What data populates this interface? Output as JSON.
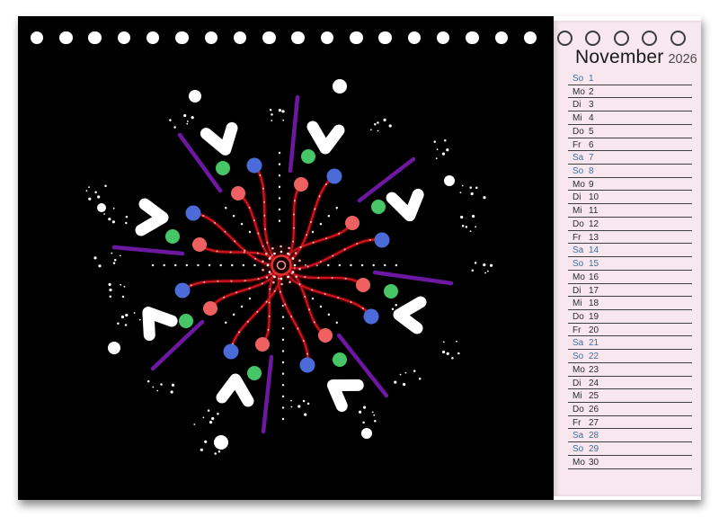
{
  "calendar": {
    "title": "November",
    "year": "2026",
    "days": [
      {
        "label": "So",
        "num": "1",
        "weekend": true
      },
      {
        "label": "Mo",
        "num": "2",
        "weekend": false
      },
      {
        "label": "Di",
        "num": "3",
        "weekend": false
      },
      {
        "label": "Mi",
        "num": "4",
        "weekend": false
      },
      {
        "label": "Do",
        "num": "5",
        "weekend": false
      },
      {
        "label": "Fr",
        "num": "6",
        "weekend": false
      },
      {
        "label": "Sa",
        "num": "7",
        "weekend": true
      },
      {
        "label": "So",
        "num": "8",
        "weekend": true
      },
      {
        "label": "Mo",
        "num": "9",
        "weekend": false
      },
      {
        "label": "Di",
        "num": "10",
        "weekend": false
      },
      {
        "label": "Mi",
        "num": "11",
        "weekend": false
      },
      {
        "label": "Do",
        "num": "12",
        "weekend": false
      },
      {
        "label": "Fr",
        "num": "13",
        "weekend": false
      },
      {
        "label": "Sa",
        "num": "14",
        "weekend": true
      },
      {
        "label": "So",
        "num": "15",
        "weekend": true
      },
      {
        "label": "Mo",
        "num": "16",
        "weekend": false
      },
      {
        "label": "Di",
        "num": "17",
        "weekend": false
      },
      {
        "label": "Mi",
        "num": "18",
        "weekend": false
      },
      {
        "label": "Do",
        "num": "19",
        "weekend": false
      },
      {
        "label": "Fr",
        "num": "20",
        "weekend": false
      },
      {
        "label": "Sa",
        "num": "21",
        "weekend": true
      },
      {
        "label": "So",
        "num": "22",
        "weekend": true
      },
      {
        "label": "Mo",
        "num": "23",
        "weekend": false
      },
      {
        "label": "Di",
        "num": "24",
        "weekend": false
      },
      {
        "label": "Mi",
        "num": "25",
        "weekend": false
      },
      {
        "label": "Do",
        "num": "26",
        "weekend": false
      },
      {
        "label": "Fr",
        "num": "27",
        "weekend": false
      },
      {
        "label": "Sa",
        "num": "28",
        "weekend": true
      },
      {
        "label": "So",
        "num": "29",
        "weekend": true
      },
      {
        "label": "Mo",
        "num": "30",
        "weekend": false
      }
    ]
  },
  "binding": {
    "filled_holes": 18,
    "ring_holes": 5
  },
  "colors": {
    "page_bg": "#ffffff",
    "panel_black": "#000000",
    "panel_pink": "#f8e7ee",
    "weekday_text": "#2d2d2d",
    "weekend_text": "#446e96",
    "row_line": "#3f3f3f",
    "title_text": "#1b1b1b",
    "year_text": "#4b4b4b",
    "art_red": "#cf1420",
    "art_red_glow": "#7a0000",
    "art_bead": "#ffc8c8",
    "art_dot_red": "#ef6161",
    "art_dot_blue": "#4a6bd8",
    "art_dot_green": "#46c667",
    "art_purple": "#6d18a0",
    "art_white": "#ffffff"
  }
}
